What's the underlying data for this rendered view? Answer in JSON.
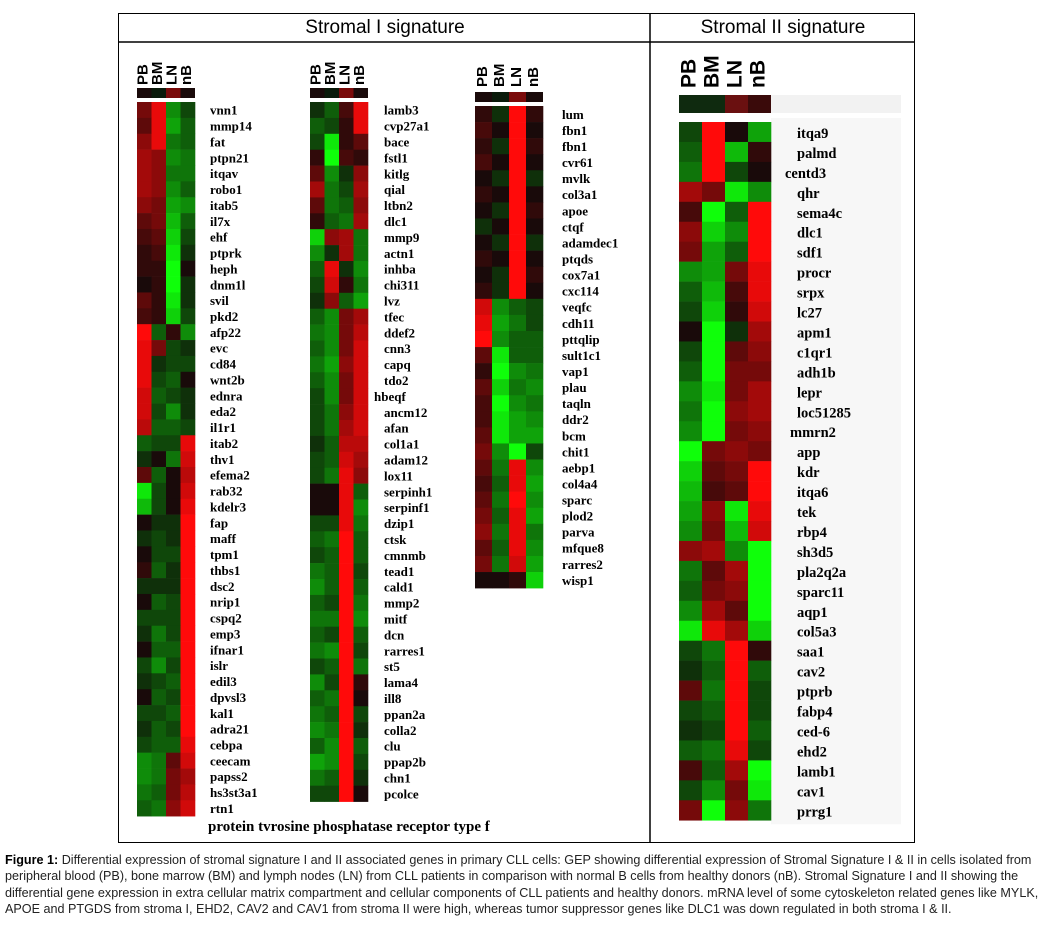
{
  "figure": {
    "panel1_title": "Stromal I signature",
    "panel2_title": "Stromal II signature",
    "footer_label": "protein tvrosine phosphatase receptor type f"
  },
  "caption": {
    "label": "Figure 1:",
    "text": "Differential expression of stromal signature I and II associated genes in primary CLL cells: GEP showing differential expression of Stromal Signature I & II in cells isolated from peripheral blood (PB), bone marrow (BM) and lymph nodes (LN) from CLL patients in comparison with normal B cells from healthy donors (nB). Stromal Signature I and II showing the differential gene expression in extra cellular matrix compartment and cellular components of CLL patients and healthy donors.  mRNA level of some cytoskeleton related genes like MYLK, APOE and PTGDS from stroma I, EHD2, CAV2 and CAV1 from stroma II were high, whereas tumor suppressor genes like DLC1 was down regulated in both stroma I & II."
  },
  "chart_data": [
    {
      "type": "heatmap",
      "title": "Stromal I signature",
      "columns": [
        "PB",
        "BM",
        "LN",
        "nB"
      ],
      "header_colors": [
        "#1a0a0a",
        "#0a1a0a",
        "#7a0a0a",
        "#1a0a0a"
      ],
      "rows": [
        "vnn1",
        "mmp14",
        "fat",
        "ptpn21",
        "itqav",
        "robo1",
        "itab5",
        "il7x",
        "ehf",
        "ptprk",
        "heph",
        "dnm1l",
        "svil",
        "pkd2",
        "afp22",
        "evc",
        "cd84",
        "wnt2b",
        "ednra",
        "eda2",
        "il1r1",
        "itab2",
        "thv1",
        "efema2",
        "rab32",
        "kdelr3",
        "fap",
        "maff",
        "tpm1",
        "thbs1",
        "dsc2",
        "nrip1",
        "cspq2",
        "emp3",
        "ifnar1",
        "islr",
        "edil3",
        "dpvsl3",
        "kal1",
        "adra21",
        "cebpa",
        "ceecam",
        "papss2",
        "hs3st3a1",
        "rtn1"
      ],
      "values": [
        [
          0.4,
          0.9,
          -0.5,
          -0.2
        ],
        [
          0.3,
          0.9,
          -0.6,
          -0.3
        ],
        [
          0.5,
          0.9,
          -0.4,
          -0.3
        ],
        [
          0.6,
          0.5,
          -0.5,
          -0.4
        ],
        [
          0.6,
          0.5,
          -0.4,
          -0.4
        ],
        [
          0.6,
          0.5,
          -0.5,
          -0.3
        ],
        [
          0.5,
          0.4,
          -0.6,
          -0.5
        ],
        [
          0.3,
          0.4,
          -0.7,
          -0.3
        ],
        [
          0.2,
          0.3,
          -0.8,
          -0.2
        ],
        [
          0.1,
          0.2,
          -0.9,
          -0.1
        ],
        [
          0.1,
          0.1,
          -1.0,
          0.0
        ],
        [
          0.0,
          0.1,
          -1.0,
          -0.1
        ],
        [
          0.3,
          0.1,
          -0.9,
          -0.1
        ],
        [
          0.2,
          0.1,
          -0.8,
          -0.2
        ],
        [
          1.0,
          -0.3,
          0.1,
          -0.5
        ],
        [
          0.9,
          0.4,
          -0.2,
          -0.1
        ],
        [
          0.9,
          -0.1,
          -0.2,
          -0.2
        ],
        [
          0.9,
          -0.2,
          -0.3,
          0.0
        ],
        [
          0.8,
          -0.3,
          -0.2,
          -0.1
        ],
        [
          0.8,
          -0.2,
          -0.5,
          -0.1
        ],
        [
          0.7,
          -0.3,
          -0.3,
          -0.2
        ],
        [
          -0.3,
          -0.2,
          -0.2,
          0.9
        ],
        [
          -0.1,
          0.0,
          -0.4,
          0.8
        ],
        [
          0.3,
          -0.3,
          0.0,
          0.7
        ],
        [
          -0.9,
          -0.2,
          0.0,
          0.8
        ],
        [
          -0.7,
          -0.2,
          0.0,
          0.9
        ],
        [
          0.0,
          -0.1,
          -0.1,
          1.0
        ],
        [
          -0.1,
          -0.2,
          -0.1,
          1.0
        ],
        [
          0.0,
          -0.2,
          -0.2,
          1.0
        ],
        [
          0.1,
          -0.3,
          -0.1,
          1.0
        ],
        [
          -0.1,
          -0.1,
          -0.1,
          1.0
        ],
        [
          0.0,
          -0.3,
          -0.2,
          1.0
        ],
        [
          -0.2,
          -0.2,
          -0.2,
          1.0
        ],
        [
          -0.1,
          -0.4,
          -0.2,
          1.0
        ],
        [
          0.0,
          -0.3,
          -0.3,
          1.0
        ],
        [
          -0.2,
          -0.5,
          -0.2,
          1.0
        ],
        [
          -0.1,
          -0.2,
          -0.3,
          1.0
        ],
        [
          0.0,
          -0.3,
          -0.2,
          1.0
        ],
        [
          -0.2,
          -0.2,
          -0.3,
          1.0
        ],
        [
          -0.1,
          -0.3,
          -0.2,
          1.0
        ],
        [
          -0.2,
          -0.3,
          -0.3,
          0.9
        ],
        [
          -0.5,
          -0.4,
          0.3,
          0.8
        ],
        [
          -0.5,
          -0.4,
          0.4,
          0.6
        ],
        [
          -0.4,
          -0.3,
          0.4,
          0.7
        ],
        [
          -0.3,
          -0.4,
          0.5,
          0.8
        ]
      ]
    },
    {
      "type": "heatmap",
      "title": "Stromal I signature",
      "columns": [
        "PB",
        "BM",
        "LN",
        "nB"
      ],
      "header_colors": [
        "#1a0a0a",
        "#0a1a0a",
        "#7a0a0a",
        "#1a0a0a"
      ],
      "rows": [
        "lamb3",
        "cvp27a1",
        "bace",
        "fstl1",
        "kitlg",
        "qial",
        "ltbn2",
        "dlc1",
        "mmp9",
        "actn1",
        "inhba",
        "chi311",
        "lvz",
        "tfec",
        "ddef2",
        "cnn3",
        "capq",
        "tdo2",
        "hbeqf",
        "ancm12",
        "afan",
        "col1a1",
        "adam12",
        "lox11",
        "serpinh1",
        "serpinf1",
        "dzip1",
        "ctsk",
        "cmnmb",
        "tead1",
        "cald1",
        "mmp2",
        "mitf",
        "dcn",
        "rarres1",
        "st5",
        "lama4",
        "ill8",
        "ppan2a",
        "colla2",
        "clu",
        "ppap2b",
        "chn1",
        "pcolce"
      ],
      "values": [
        [
          -0.1,
          -0.3,
          0.2,
          0.9
        ],
        [
          -0.3,
          -0.2,
          0.1,
          0.9
        ],
        [
          -0.2,
          -0.9,
          0.1,
          0.3
        ],
        [
          0.1,
          -1.0,
          0.2,
          0.1
        ],
        [
          0.3,
          -0.5,
          -0.1,
          0.5
        ],
        [
          0.6,
          -0.4,
          -0.2,
          0.6
        ],
        [
          0.3,
          -0.4,
          -0.3,
          0.5
        ],
        [
          0.1,
          -0.3,
          -0.4,
          0.6
        ],
        [
          -0.8,
          0.5,
          0.6,
          -0.4
        ],
        [
          -0.5,
          -0.1,
          0.6,
          -0.4
        ],
        [
          -0.3,
          0.9,
          -0.1,
          -0.5
        ],
        [
          -0.2,
          0.8,
          0.1,
          -0.4
        ],
        [
          -0.1,
          0.5,
          -0.3,
          -0.6
        ],
        [
          -0.3,
          -0.5,
          0.4,
          0.6
        ],
        [
          -0.4,
          -0.5,
          0.4,
          0.7
        ],
        [
          -0.3,
          -0.5,
          0.4,
          0.8
        ],
        [
          -0.4,
          -0.6,
          0.5,
          0.8
        ],
        [
          -0.3,
          -0.5,
          0.4,
          0.8
        ],
        [
          -0.2,
          -0.5,
          0.4,
          0.8
        ],
        [
          -0.2,
          -0.4,
          0.5,
          0.8
        ],
        [
          -0.2,
          -0.4,
          0.6,
          0.8
        ],
        [
          -0.1,
          -0.3,
          0.7,
          0.7
        ],
        [
          -0.2,
          -0.3,
          0.8,
          0.6
        ],
        [
          -0.2,
          -0.4,
          0.9,
          0.5
        ],
        [
          0.0,
          0.0,
          0.9,
          -0.3
        ],
        [
          0.0,
          0.0,
          0.9,
          -0.5
        ],
        [
          -0.2,
          -0.2,
          0.9,
          -0.4
        ],
        [
          -0.3,
          -0.4,
          1.0,
          -0.3
        ],
        [
          -0.2,
          -0.3,
          1.0,
          -0.3
        ],
        [
          -0.4,
          -0.3,
          1.0,
          -0.2
        ],
        [
          -0.5,
          -0.3,
          1.0,
          -0.3
        ],
        [
          -0.3,
          -0.2,
          1.0,
          -0.4
        ],
        [
          -0.4,
          -0.4,
          1.0,
          -0.5
        ],
        [
          -0.3,
          -0.2,
          1.0,
          -0.3
        ],
        [
          -0.4,
          -0.5,
          1.0,
          -0.2
        ],
        [
          -0.2,
          -0.3,
          1.0,
          -0.4
        ],
        [
          -0.5,
          -0.2,
          1.0,
          0.1
        ],
        [
          -0.3,
          -0.4,
          1.0,
          0.0
        ],
        [
          -0.4,
          -0.3,
          1.0,
          -0.2
        ],
        [
          -0.5,
          -0.4,
          1.0,
          -0.1
        ],
        [
          -0.3,
          -0.5,
          1.0,
          -0.3
        ],
        [
          -0.6,
          -0.5,
          1.0,
          -0.2
        ],
        [
          -0.4,
          -0.3,
          1.0,
          -0.1
        ],
        [
          -0.2,
          -0.2,
          1.0,
          0.0
        ]
      ]
    },
    {
      "type": "heatmap",
      "title": "Stromal I signature",
      "columns": [
        "PB",
        "BM",
        "LN",
        "nB"
      ],
      "header_colors": [
        "#1a0a0a",
        "#0a1a0a",
        "#7a0a0a",
        "#1a0a0a"
      ],
      "rows": [
        "lum",
        "fbn1",
        "fbn1",
        "cvr61",
        "mvlk",
        "col3a1",
        "apoe",
        "ctqf",
        "adamdec1",
        "ptqds",
        "cox7a1",
        "cxc114",
        "veqfc",
        "cdh11",
        "pttqlip",
        "sult1c1",
        "vap1",
        "plau",
        "taqln",
        "ddr2",
        "bcm",
        "chit1",
        "aebp1",
        "col4a4",
        "sparc",
        "plod2",
        "parva",
        "mfque8",
        "rarres2",
        "wisp1"
      ],
      "values": [
        [
          0.1,
          -0.1,
          1.0,
          0.1
        ],
        [
          0.2,
          0.0,
          1.0,
          0.0
        ],
        [
          0.1,
          -0.1,
          1.0,
          0.1
        ],
        [
          0.2,
          0.0,
          1.0,
          0.0
        ],
        [
          0.0,
          -0.1,
          1.0,
          -0.1
        ],
        [
          0.1,
          0.0,
          1.0,
          0.0
        ],
        [
          0.0,
          -0.1,
          1.0,
          0.1
        ],
        [
          -0.1,
          0.0,
          1.0,
          0.0
        ],
        [
          0.0,
          -0.1,
          1.0,
          -0.1
        ],
        [
          0.1,
          0.0,
          1.0,
          0.0
        ],
        [
          0.0,
          -0.1,
          1.0,
          0.1
        ],
        [
          0.1,
          -0.1,
          1.0,
          0.0
        ],
        [
          0.8,
          -0.5,
          -0.3,
          -0.2
        ],
        [
          0.9,
          -0.6,
          -0.4,
          -0.2
        ],
        [
          1.0,
          -0.5,
          -0.3,
          -0.3
        ],
        [
          0.3,
          -0.9,
          -0.3,
          -0.3
        ],
        [
          0.1,
          -1.0,
          -0.5,
          -0.4
        ],
        [
          0.3,
          -0.8,
          -0.4,
          -0.5
        ],
        [
          0.2,
          -1.0,
          -0.5,
          -0.4
        ],
        [
          0.2,
          -0.9,
          -0.6,
          -0.5
        ],
        [
          0.3,
          -0.9,
          -0.6,
          -0.6
        ],
        [
          0.4,
          -0.5,
          -1.0,
          -0.2
        ],
        [
          0.3,
          -0.4,
          0.9,
          -0.5
        ],
        [
          0.2,
          -0.3,
          0.9,
          -0.6
        ],
        [
          0.3,
          -0.4,
          1.0,
          -0.5
        ],
        [
          0.4,
          -0.3,
          0.9,
          -0.6
        ],
        [
          0.5,
          -0.4,
          0.9,
          -0.4
        ],
        [
          0.3,
          -0.3,
          0.9,
          -0.5
        ],
        [
          0.4,
          -0.4,
          0.8,
          -0.6
        ],
        [
          0.0,
          0.0,
          0.1,
          -0.8
        ]
      ]
    },
    {
      "type": "heatmap",
      "title": "Stromal II signature",
      "columns": [
        "PB",
        "BM",
        "LN",
        "nB"
      ],
      "header_colors": [
        "#0f2a0f",
        "#0f2a0f",
        "#6a1010",
        "#3a0a0a"
      ],
      "rows": [
        "itqa9",
        "palmd",
        "centd3",
        "qhr",
        "sema4c",
        "dlc1",
        "sdf1",
        "procr",
        "srpx",
        "lc27",
        "apm1",
        "c1qr1",
        "adh1b",
        "lepr",
        "loc51285",
        "mmrn2",
        "app",
        "kdr",
        "itqa6",
        "tek",
        "rbp4",
        "sh3d5",
        "pla2q2a",
        "sparc11",
        "aqp1",
        "col5a3",
        "saa1",
        "cav2",
        "ptprb",
        "fabp4",
        "ced-6",
        "ehd2",
        "lamb1",
        "cav1",
        "prrg1"
      ],
      "values": [
        [
          -0.2,
          1.0,
          0.0,
          -0.6
        ],
        [
          -0.3,
          1.0,
          -0.7,
          0.1
        ],
        [
          -0.4,
          1.0,
          -0.2,
          0.0
        ],
        [
          0.6,
          0.4,
          -0.9,
          -0.5
        ],
        [
          0.2,
          -1.0,
          -0.3,
          1.0
        ],
        [
          0.5,
          -0.8,
          -0.5,
          1.0
        ],
        [
          0.4,
          -0.6,
          -0.3,
          1.0
        ],
        [
          -0.5,
          -0.6,
          0.4,
          0.9
        ],
        [
          -0.3,
          -0.7,
          0.2,
          0.9
        ],
        [
          -0.2,
          -0.8,
          0.1,
          0.8
        ],
        [
          0.0,
          -1.0,
          -0.1,
          0.6
        ],
        [
          -0.2,
          -1.0,
          0.3,
          0.5
        ],
        [
          -0.3,
          -1.0,
          0.4,
          0.4
        ],
        [
          -0.5,
          -0.9,
          0.4,
          0.6
        ],
        [
          -0.4,
          -1.0,
          0.5,
          0.6
        ],
        [
          -0.5,
          -1.0,
          0.4,
          0.5
        ],
        [
          -1.0,
          0.4,
          0.5,
          0.4
        ],
        [
          -0.8,
          0.3,
          0.4,
          1.0
        ],
        [
          -0.7,
          0.2,
          0.3,
          1.0
        ],
        [
          -0.6,
          0.5,
          -0.9,
          0.9
        ],
        [
          -0.5,
          0.4,
          -0.7,
          0.8
        ],
        [
          0.5,
          0.6,
          -0.5,
          -1.0
        ],
        [
          -0.4,
          0.3,
          0.6,
          -1.0
        ],
        [
          -0.3,
          0.4,
          0.5,
          -1.0
        ],
        [
          -0.5,
          0.6,
          0.3,
          -1.0
        ],
        [
          -0.9,
          0.9,
          0.6,
          -0.8
        ],
        [
          -0.2,
          -0.4,
          1.0,
          0.1
        ],
        [
          -0.1,
          -0.3,
          1.0,
          -0.3
        ],
        [
          0.3,
          -0.4,
          1.0,
          -0.2
        ],
        [
          -0.2,
          -0.3,
          1.0,
          -0.2
        ],
        [
          -0.1,
          -0.2,
          1.0,
          -0.3
        ],
        [
          -0.3,
          -0.4,
          0.9,
          -0.2
        ],
        [
          0.2,
          -0.3,
          0.6,
          -1.0
        ],
        [
          -0.2,
          -0.5,
          0.4,
          -0.9
        ],
        [
          0.4,
          -1.0,
          0.5,
          -0.4
        ]
      ]
    }
  ]
}
